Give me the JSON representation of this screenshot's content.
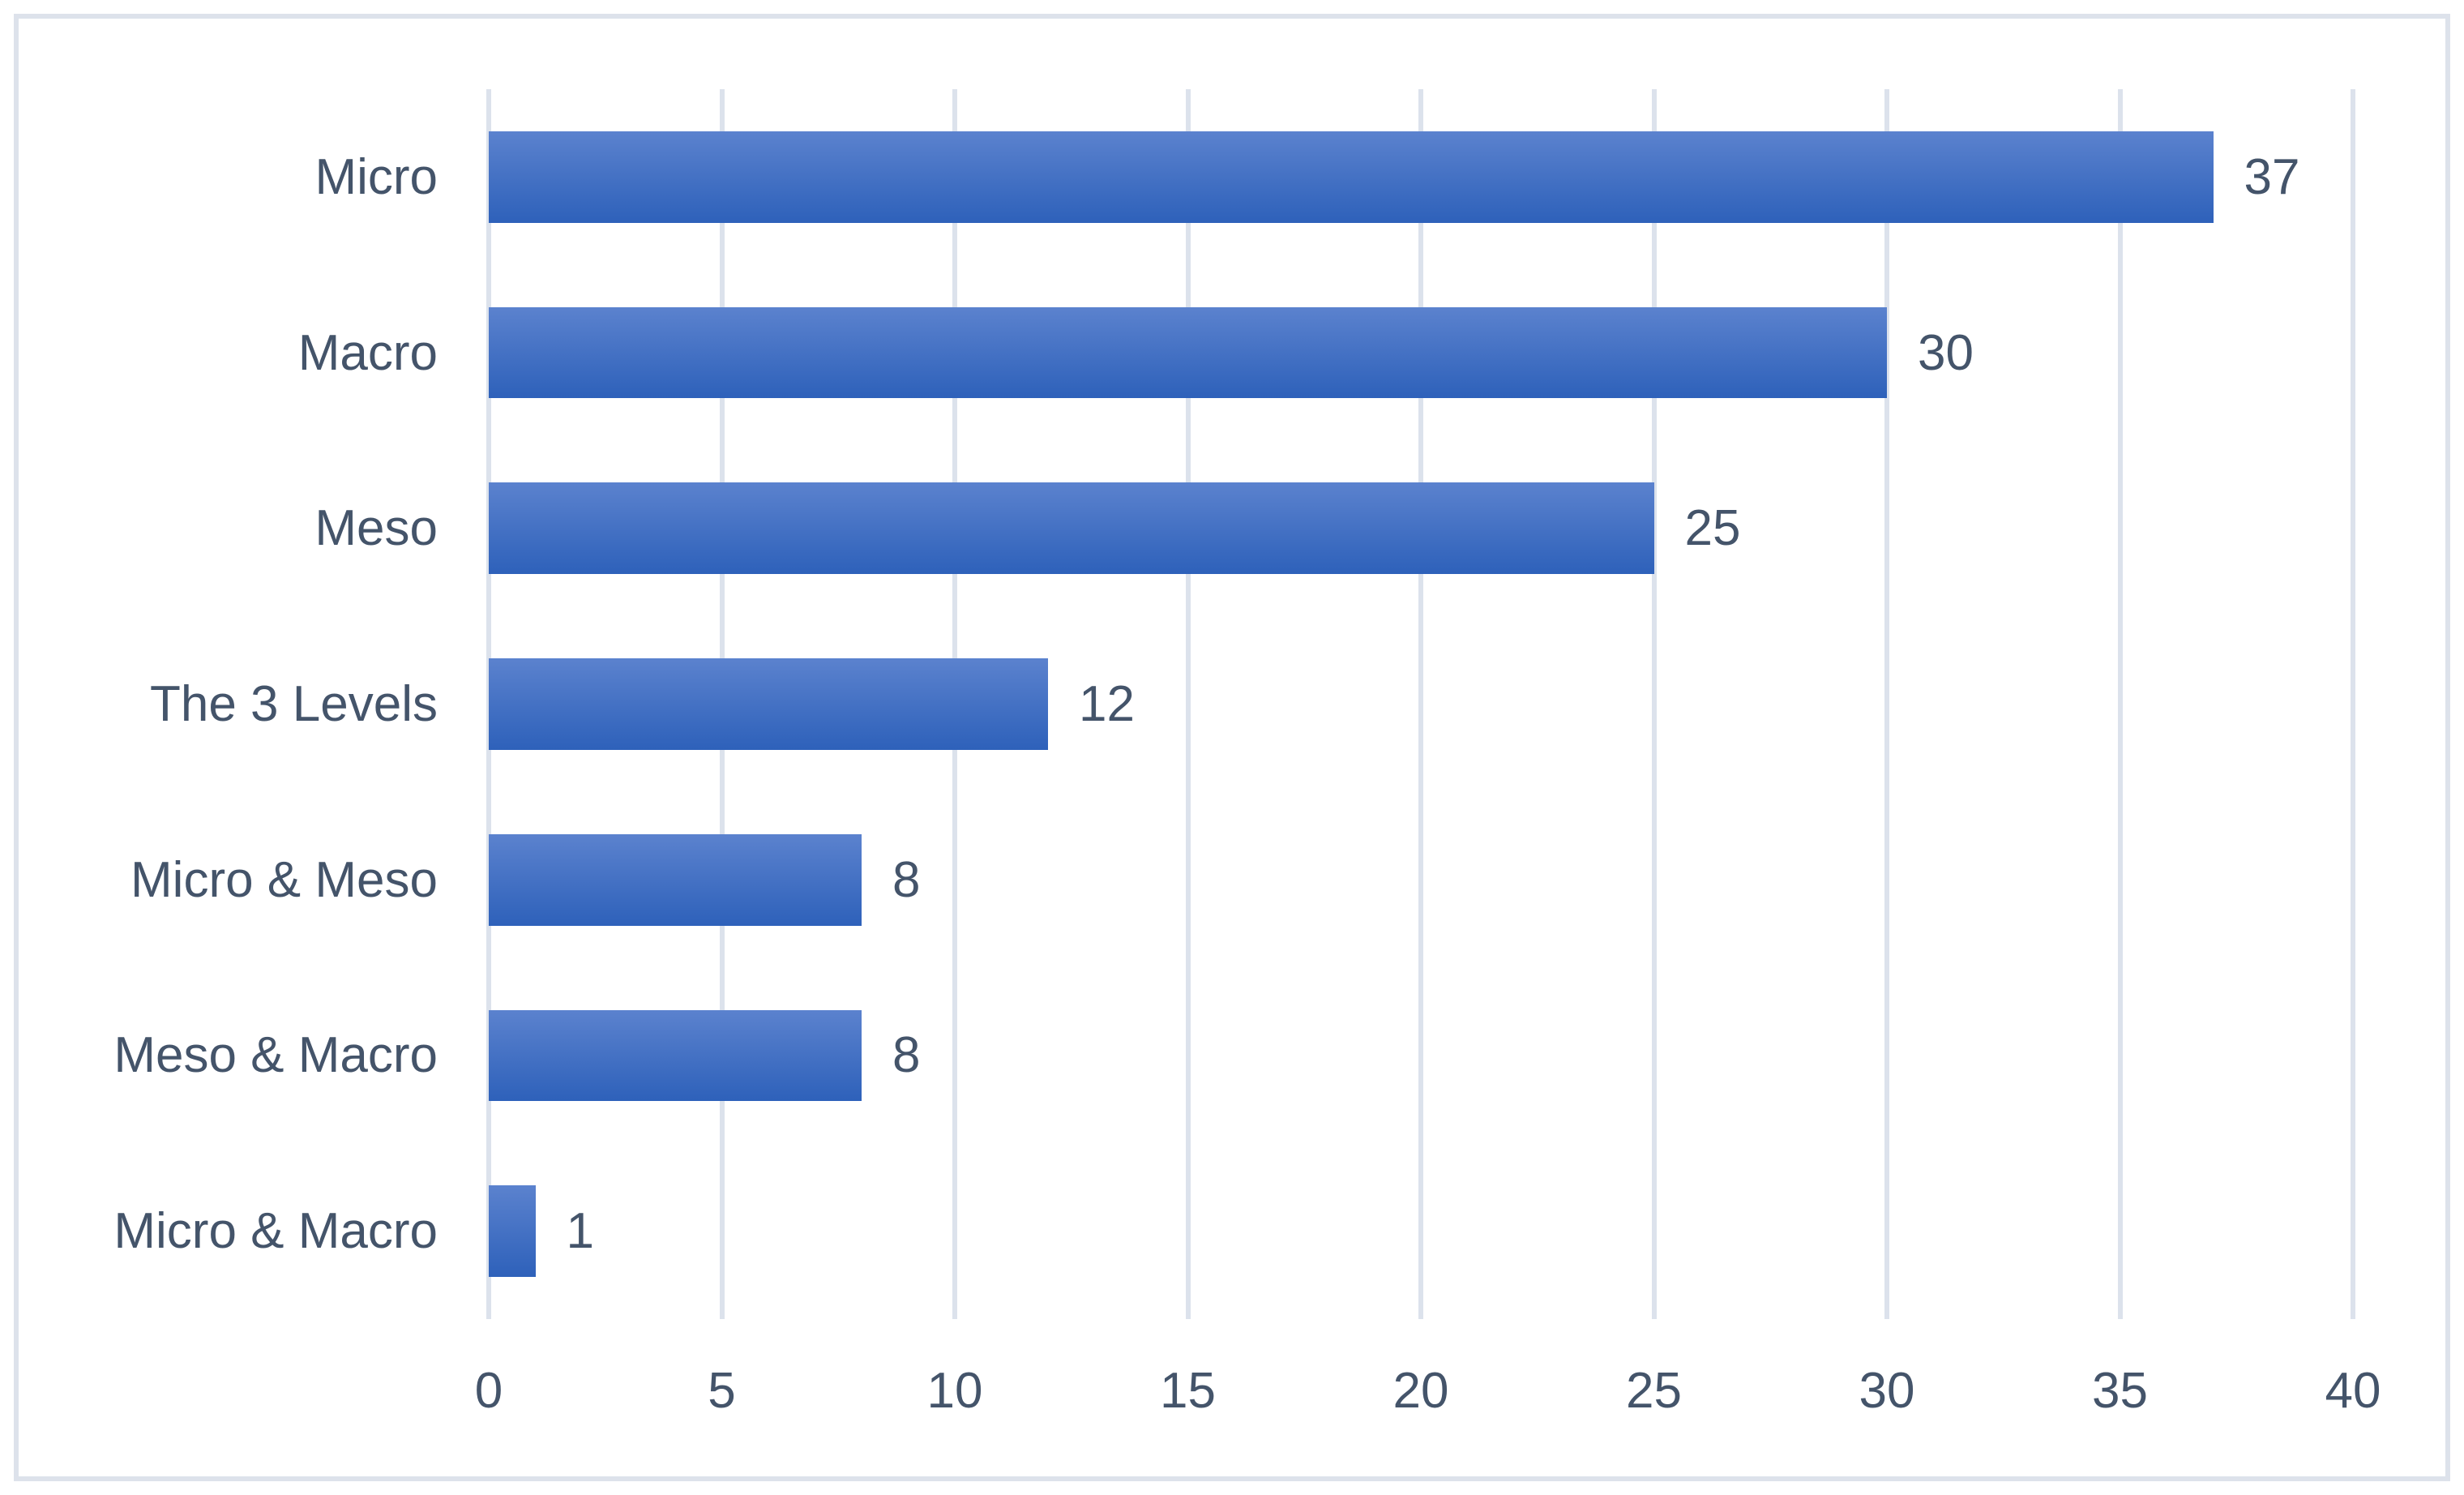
{
  "chart_data": {
    "type": "bar",
    "orientation": "horizontal",
    "title": "",
    "xlabel": "",
    "ylabel": "",
    "categories": [
      "Micro",
      "Macro",
      "Meso",
      "The 3 Levels",
      "Micro & Meso",
      "Meso & Macro",
      "Micro & Macro"
    ],
    "values": [
      37,
      30,
      25,
      12,
      8,
      8,
      1
    ],
    "data_labels": [
      "37",
      "30",
      "25",
      "12",
      "8",
      "8",
      "1"
    ],
    "xlim": [
      0,
      40
    ],
    "x_ticks": [
      "0",
      "5",
      "10",
      "15",
      "20",
      "25",
      "30",
      "35",
      "40"
    ],
    "grid": "vertical-on",
    "legend": "none",
    "colors": {
      "bar_gradient_top": "#5b82ce",
      "bar_gradient_bottom": "#2e61ba",
      "text": "#44546a",
      "gridline": "#dce2ec",
      "frame_border": "#dde2eb",
      "background": "#ffffff"
    }
  }
}
